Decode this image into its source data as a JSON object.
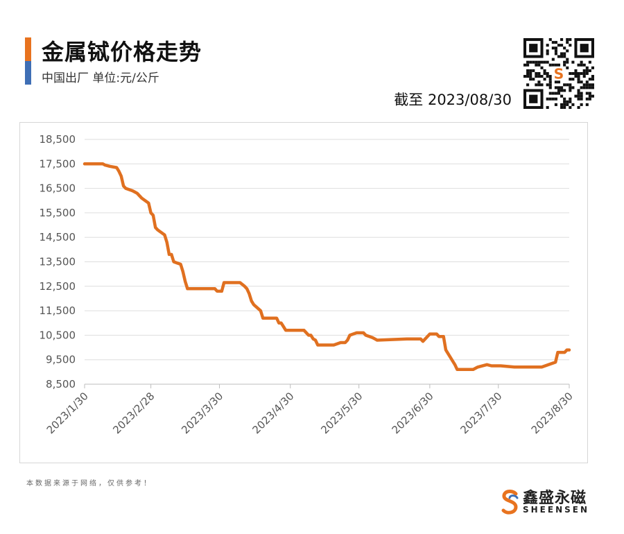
{
  "header": {
    "title": "金属铽价格走势",
    "subtitle": "中国出厂  单位:元/公斤",
    "date_label": "截至 2023/08/30"
  },
  "footer": {
    "note": "本数据来源于网络，仅供参考！",
    "logo_cn": "鑫盛永磁",
    "logo_en": "SHEENSEN"
  },
  "colors": {
    "line": "#e07020",
    "accent_orange": "#e8731f",
    "accent_blue": "#3f6fb5"
  },
  "icons": {
    "qr": "qr-code-icon",
    "logo": "sheensen-logo-icon"
  },
  "chart_data": {
    "type": "line",
    "title": "",
    "xlabel": "",
    "ylabel": "",
    "ylim": [
      8500,
      18500
    ],
    "yticks": [
      "18,500",
      "17,500",
      "16,500",
      "15,500",
      "14,500",
      "13,500",
      "12,500",
      "11,500",
      "10,500",
      "9,500",
      "8,500"
    ],
    "ytick_values": [
      18500,
      17500,
      16500,
      15500,
      14500,
      13500,
      12500,
      11500,
      10500,
      9500,
      8500
    ],
    "xticks": [
      "2023/1/30",
      "2023/2/28",
      "2023/3/30",
      "2023/4/30",
      "2023/5/30",
      "2023/6/30",
      "2023/7/30",
      "2023/8/30"
    ],
    "xtick_dates": [
      "2023-01-30",
      "2023-02-28",
      "2023-03-30",
      "2023-04-30",
      "2023-05-30",
      "2023-06-30",
      "2023-07-30",
      "2023-08-30"
    ],
    "grid": "horizontal",
    "series": [
      {
        "x": [
          "2023-01-30",
          "2023-02-07",
          "2023-02-08",
          "2023-02-10",
          "2023-02-13",
          "2023-02-14",
          "2023-02-15",
          "2023-02-16",
          "2023-02-17",
          "2023-02-20",
          "2023-02-21",
          "2023-02-22",
          "2023-02-23",
          "2023-02-24",
          "2023-02-27",
          "2023-02-28",
          "2023-03-01",
          "2023-03-02",
          "2023-03-03",
          "2023-03-06",
          "2023-03-07",
          "2023-03-08",
          "2023-03-09",
          "2023-03-10",
          "2023-03-13",
          "2023-03-14",
          "2023-03-15",
          "2023-03-16",
          "2023-03-28",
          "2023-03-29",
          "2023-03-31",
          "2023-04-01",
          "2023-04-08",
          "2023-04-10",
          "2023-04-11",
          "2023-04-12",
          "2023-04-13",
          "2023-04-14",
          "2023-04-17",
          "2023-04-18",
          "2023-04-19",
          "2023-04-24",
          "2023-04-25",
          "2023-04-26",
          "2023-04-27",
          "2023-04-28",
          "2023-05-06",
          "2023-05-08",
          "2023-05-09",
          "2023-05-10",
          "2023-05-11",
          "2023-05-12",
          "2023-05-19",
          "2023-05-22",
          "2023-05-24",
          "2023-05-25",
          "2023-05-26",
          "2023-05-29",
          "2023-05-30",
          "2023-05-31",
          "2023-06-01",
          "2023-06-02",
          "2023-06-05",
          "2023-06-06",
          "2023-06-07",
          "2023-06-20",
          "2023-06-21",
          "2023-06-22",
          "2023-06-26",
          "2023-06-27",
          "2023-06-30",
          "2023-07-03",
          "2023-07-04",
          "2023-07-06",
          "2023-07-07",
          "2023-07-10",
          "2023-07-11",
          "2023-07-12",
          "2023-07-19",
          "2023-07-21",
          "2023-07-25",
          "2023-07-27",
          "2023-07-31",
          "2023-08-06",
          "2023-08-18",
          "2023-08-21",
          "2023-08-24",
          "2023-08-25",
          "2023-08-28",
          "2023-08-29",
          "2023-08-30"
        ],
        "values": [
          17500,
          17500,
          17450,
          17400,
          17350,
          17200,
          17000,
          16600,
          16500,
          16400,
          16350,
          16300,
          16200,
          16100,
          15900,
          15500,
          15400,
          14900,
          14800,
          14600,
          14300,
          13800,
          13800,
          13500,
          13400,
          13100,
          12700,
          12400,
          12400,
          12300,
          12300,
          12650,
          12650,
          12500,
          12400,
          12200,
          11900,
          11750,
          11500,
          11200,
          11200,
          11200,
          11000,
          11000,
          10850,
          10700,
          10700,
          10500,
          10500,
          10350,
          10300,
          10100,
          10100,
          10200,
          10200,
          10300,
          10500,
          10600,
          10600,
          10600,
          10600,
          10500,
          10400,
          10350,
          10300,
          10350,
          10350,
          10350,
          10350,
          10250,
          10550,
          10550,
          10450,
          10450,
          9900,
          9450,
          9300,
          9100,
          9100,
          9200,
          9300,
          9250,
          9250,
          9200,
          9200,
          9300,
          9400,
          9800,
          9800,
          9900,
          9900
        ]
      }
    ]
  }
}
